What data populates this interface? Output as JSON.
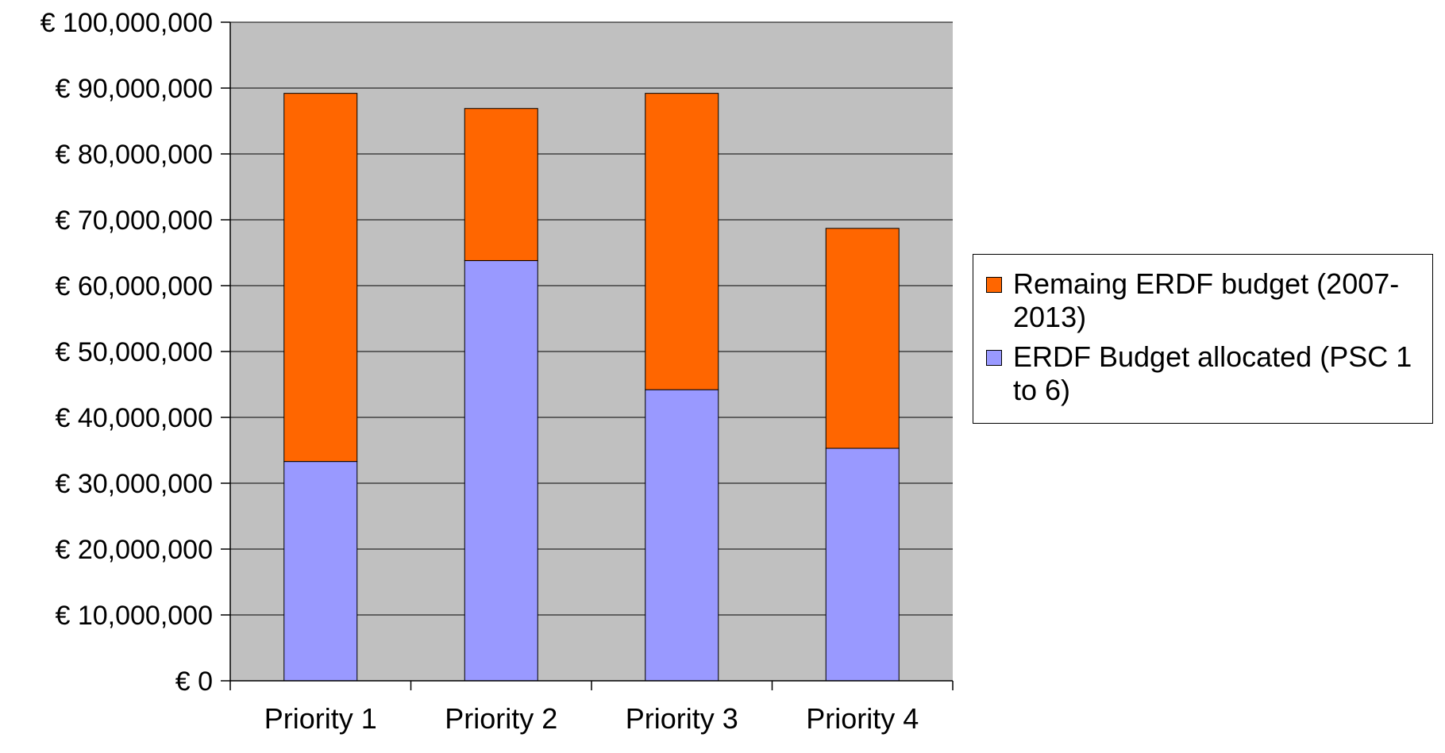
{
  "chart_data": {
    "type": "bar",
    "stacked": true,
    "title": "",
    "xlabel": "",
    "ylabel": "",
    "categories": [
      "Priority 1",
      "Priority 2",
      "Priority 3",
      "Priority 4"
    ],
    "ylim": [
      0,
      100000000
    ],
    "yticks": [
      0,
      10000000,
      20000000,
      30000000,
      40000000,
      50000000,
      60000000,
      70000000,
      80000000,
      90000000,
      100000000
    ],
    "ytick_labels": [
      "€ 0",
      "€ 10,000,000",
      "€ 20,000,000",
      "€ 30,000,000",
      "€ 40,000,000",
      "€ 50,000,000",
      "€ 60,000,000",
      "€ 70,000,000",
      "€ 80,000,000",
      "€ 90,000,000",
      "€ 100,000,000"
    ],
    "grid": true,
    "legend_position": "right",
    "plot_background": "#c0c0c0",
    "series": [
      {
        "name": "ERDF Budget allocated (PSC 1 to 6)",
        "color": "#9999ff",
        "values": [
          33300000,
          63800000,
          44200000,
          35300000
        ]
      },
      {
        "name": "Remaing ERDF budget (2007-2013)",
        "color": "#ff6600",
        "values": [
          55900000,
          23100000,
          45000000,
          33400000
        ]
      }
    ],
    "legend_order": [
      1,
      0
    ]
  }
}
